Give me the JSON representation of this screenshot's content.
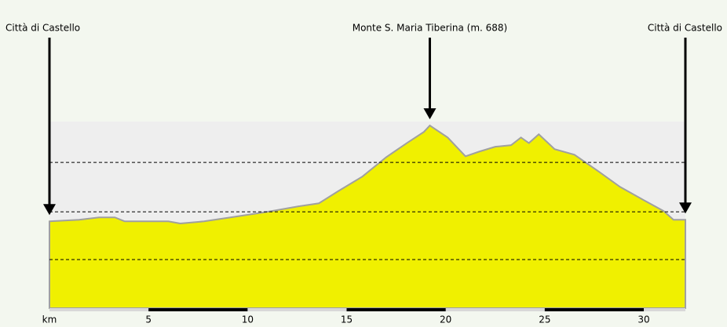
{
  "chart_data": {
    "type": "area",
    "x": [
      0,
      1.5,
      2.5,
      3.3,
      3.8,
      4.8,
      6.0,
      6.6,
      7.8,
      9.4,
      11.0,
      12.6,
      13.6,
      14.6,
      15.8,
      17.0,
      18.1,
      18.9,
      19.2,
      20.1,
      21.0,
      21.7,
      22.5,
      23.3,
      23.8,
      24.2,
      24.7,
      25.5,
      26.5,
      27.7,
      28.8,
      30.0,
      31.0,
      31.5,
      32.1
    ],
    "values": [
      327,
      333,
      342,
      342,
      327,
      327,
      327,
      319,
      327,
      345,
      363,
      384,
      395,
      442,
      496,
      569,
      625,
      664,
      688,
      643,
      572,
      590,
      608,
      614,
      643,
      622,
      655,
      599,
      578,
      516,
      457,
      407,
      366,
      333,
      333
    ],
    "color": "#f0f000",
    "line_color": "#a0a0a0",
    "xlim": [
      0,
      32.1
    ],
    "xticks": [
      {
        "value": 0,
        "label": "km"
      },
      5,
      10,
      15,
      20,
      25,
      30
    ],
    "ylim": [
      0,
      703
    ],
    "yticks": [
      183,
      363,
      549
    ],
    "grid": true,
    "annotations": [
      {
        "text": "Città di Castello",
        "x": 0
      },
      {
        "text": "Monte S. Maria Tiberina (m. 688)",
        "x": 19.2
      },
      {
        "text": "Città di Castello",
        "x": 32.1
      }
    ]
  }
}
